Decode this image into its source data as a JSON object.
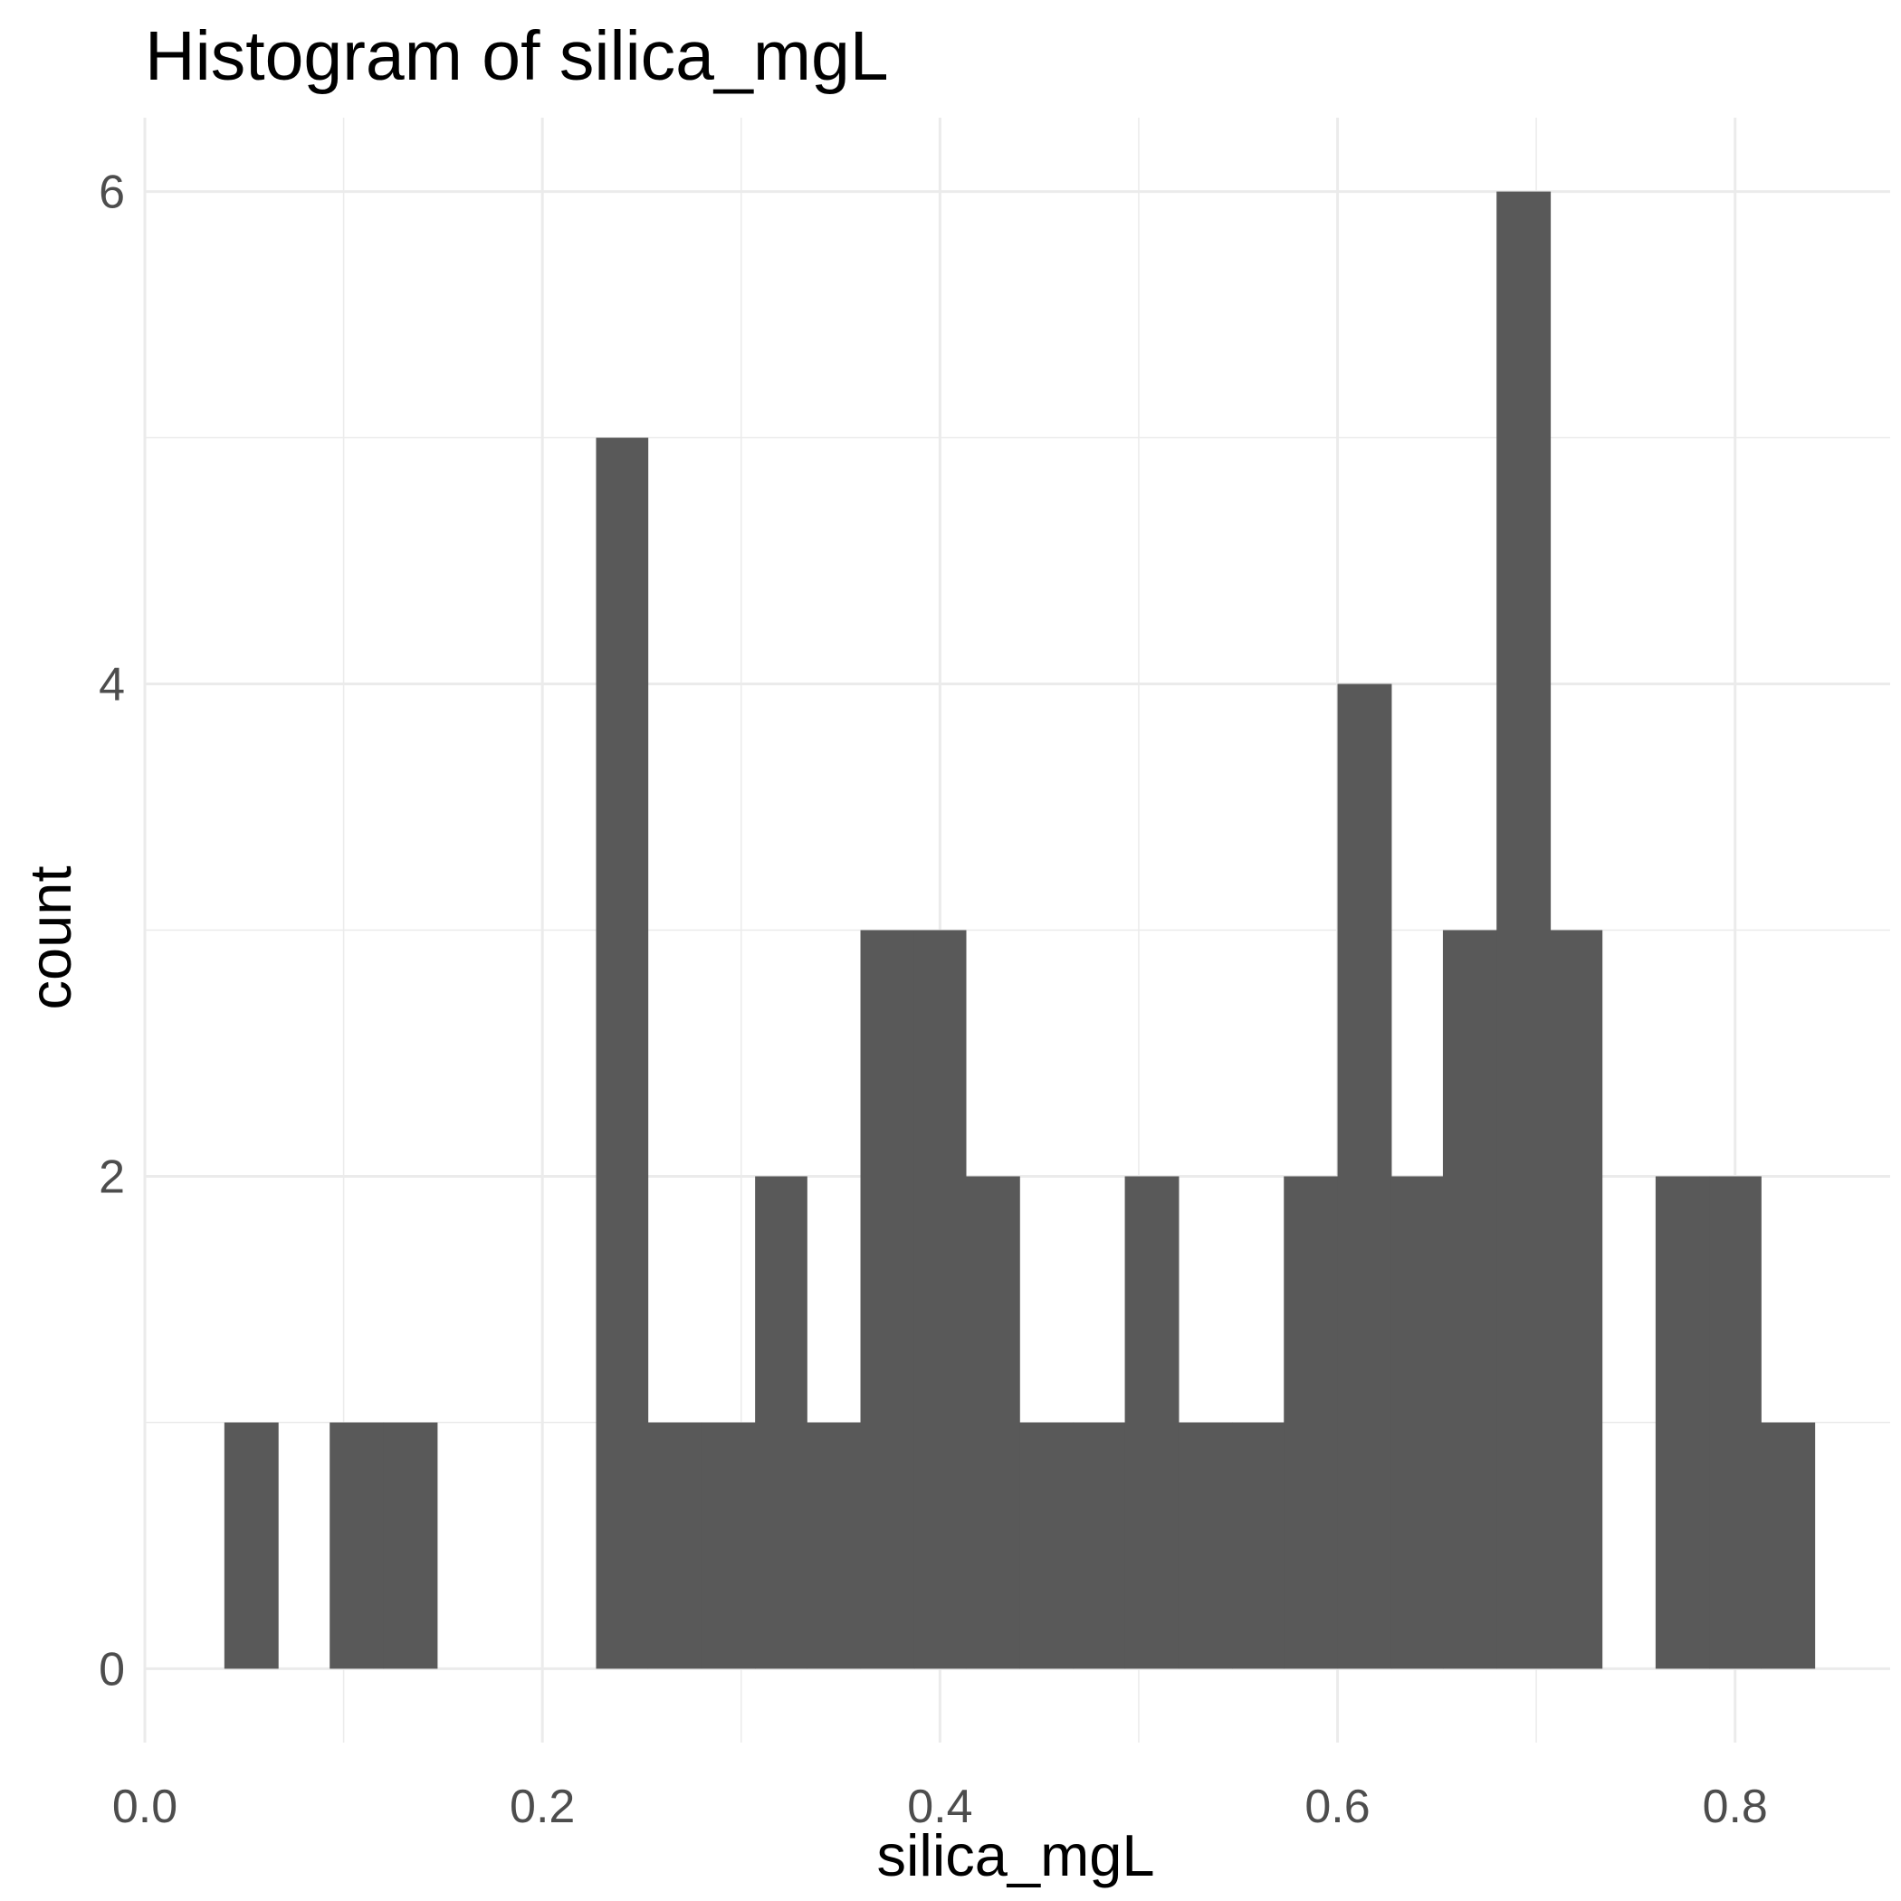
{
  "chart_data": {
    "type": "bar",
    "title": "Histogram of  silica_mgL",
    "xlabel": "silica_mgL",
    "ylabel": "count",
    "bin_width": 0.0267,
    "bins": [
      {
        "start": 0.04,
        "end": 0.067,
        "count": 1
      },
      {
        "start": 0.067,
        "end": 0.093,
        "count": 0
      },
      {
        "start": 0.093,
        "end": 0.12,
        "count": 1
      },
      {
        "start": 0.12,
        "end": 0.147,
        "count": 1
      },
      {
        "start": 0.147,
        "end": 0.173,
        "count": 0
      },
      {
        "start": 0.173,
        "end": 0.2,
        "count": 0
      },
      {
        "start": 0.2,
        "end": 0.227,
        "count": 0
      },
      {
        "start": 0.227,
        "end": 0.253,
        "count": 5
      },
      {
        "start": 0.253,
        "end": 0.28,
        "count": 1
      },
      {
        "start": 0.28,
        "end": 0.307,
        "count": 1
      },
      {
        "start": 0.307,
        "end": 0.333,
        "count": 2
      },
      {
        "start": 0.333,
        "end": 0.36,
        "count": 1
      },
      {
        "start": 0.36,
        "end": 0.387,
        "count": 3
      },
      {
        "start": 0.387,
        "end": 0.413,
        "count": 3
      },
      {
        "start": 0.413,
        "end": 0.44,
        "count": 2
      },
      {
        "start": 0.44,
        "end": 0.467,
        "count": 1
      },
      {
        "start": 0.467,
        "end": 0.493,
        "count": 1
      },
      {
        "start": 0.493,
        "end": 0.52,
        "count": 2
      },
      {
        "start": 0.52,
        "end": 0.547,
        "count": 1
      },
      {
        "start": 0.547,
        "end": 0.573,
        "count": 1
      },
      {
        "start": 0.573,
        "end": 0.6,
        "count": 2
      },
      {
        "start": 0.6,
        "end": 0.627,
        "count": 4
      },
      {
        "start": 0.627,
        "end": 0.653,
        "count": 2
      },
      {
        "start": 0.653,
        "end": 0.68,
        "count": 3
      },
      {
        "start": 0.68,
        "end": 0.707,
        "count": 6
      },
      {
        "start": 0.707,
        "end": 0.733,
        "count": 3
      },
      {
        "start": 0.733,
        "end": 0.76,
        "count": 0
      },
      {
        "start": 0.76,
        "end": 0.787,
        "count": 2
      },
      {
        "start": 0.787,
        "end": 0.813,
        "count": 2
      },
      {
        "start": 0.813,
        "end": 0.84,
        "count": 1
      }
    ],
    "xlim": [
      0.0,
      0.878
    ],
    "ylim": [
      -0.3,
      6.3
    ],
    "x_ticks": [
      0.0,
      0.2,
      0.4,
      0.6,
      0.8
    ],
    "x_tick_labels": [
      "0.0",
      "0.2",
      "0.4",
      "0.6",
      "0.8"
    ],
    "y_ticks": [
      0,
      2,
      4,
      6
    ],
    "y_tick_labels": [
      "0",
      "2",
      "4",
      "6"
    ],
    "grid": true,
    "bar_color": "#595959",
    "grid_color": "#ebebeb",
    "background": "#ffffff"
  }
}
